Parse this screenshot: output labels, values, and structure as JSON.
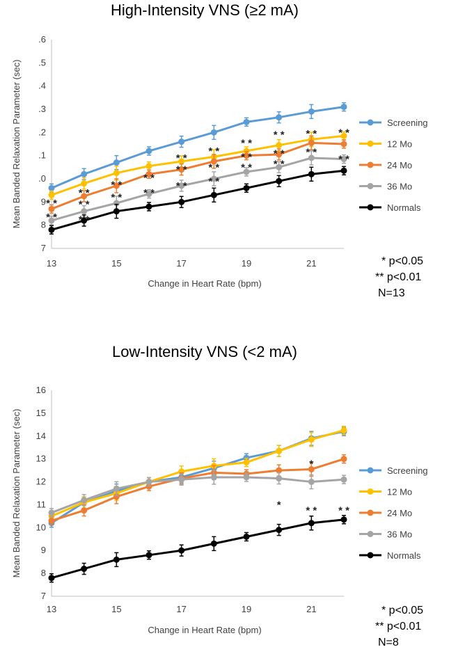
{
  "chart_data": [
    {
      "type": "line",
      "title": "High-Intensity VNS (≥2 mA)",
      "xlabel": "Change in Heart Rate (bpm)",
      "ylabel": "Mean Banded Relaxation Parameter (sec)",
      "xlim": [
        13,
        22
      ],
      "ylim": [
        7,
        16
      ],
      "x_ticks": [
        "13",
        "15",
        "17",
        "19",
        "21"
      ],
      "y_ticks": [
        ".6",
        ".5",
        ".4",
        ".3",
        ".2",
        ".1",
        ".0",
        "9",
        "8",
        "7"
      ],
      "x": [
        13,
        14,
        15,
        16,
        17,
        18,
        19,
        20,
        21,
        22
      ],
      "series": [
        {
          "name": "Screening",
          "color": "#5b9bd5",
          "values": [
            9.6,
            10.2,
            10.7,
            11.2,
            11.6,
            12.0,
            12.45,
            12.65,
            12.9,
            13.1
          ]
        },
        {
          "name": "12 Mo",
          "color": "#ffc000",
          "values": [
            9.3,
            9.8,
            10.25,
            10.55,
            10.75,
            10.95,
            11.2,
            11.45,
            11.7,
            11.85
          ]
        },
        {
          "name": "24 Mo",
          "color": "#ed7d31",
          "values": [
            8.7,
            9.25,
            9.7,
            10.2,
            10.4,
            10.75,
            11.0,
            11.05,
            11.55,
            11.5
          ]
        },
        {
          "name": "36 Mo",
          "color": "#a5a5a5",
          "values": [
            8.2,
            8.6,
            8.95,
            9.35,
            9.7,
            10.0,
            10.3,
            10.5,
            10.9,
            10.85
          ]
        },
        {
          "name": "Normals",
          "color": "#000000",
          "values": [
            7.8,
            8.2,
            8.6,
            8.8,
            9.0,
            9.3,
            9.6,
            9.9,
            10.2,
            10.35
          ]
        }
      ],
      "significance_marks": [
        {
          "x": 13,
          "y": 9.1,
          "label": "* *"
        },
        {
          "x": 13,
          "y": 8.5,
          "label": "* *"
        },
        {
          "x": 14,
          "y": 9.55,
          "label": "* *"
        },
        {
          "x": 14,
          "y": 9.05,
          "label": "* *"
        },
        {
          "x": 14,
          "y": 8.4,
          "label": "* *"
        },
        {
          "x": 15,
          "y": 9.9,
          "label": "* *"
        },
        {
          "x": 15,
          "y": 9.35,
          "label": "* *"
        },
        {
          "x": 16,
          "y": 10.2,
          "label": "* *"
        },
        {
          "x": 16,
          "y": 9.55,
          "label": "* *"
        },
        {
          "x": 17,
          "y": 11.05,
          "label": "* *"
        },
        {
          "x": 17,
          "y": 10.55,
          "label": "* *"
        },
        {
          "x": 17,
          "y": 9.85,
          "label": "* *"
        },
        {
          "x": 18,
          "y": 11.35,
          "label": "* *"
        },
        {
          "x": 18,
          "y": 10.65,
          "label": "* *"
        },
        {
          "x": 18,
          "y": 10.05,
          "label": "* *"
        },
        {
          "x": 19,
          "y": 11.7,
          "label": "* *"
        },
        {
          "x": 19,
          "y": 11.1,
          "label": "* *"
        },
        {
          "x": 19,
          "y": 10.65,
          "label": "* *"
        },
        {
          "x": 20,
          "y": 12.05,
          "label": "* *"
        },
        {
          "x": 20,
          "y": 11.25,
          "label": "* *"
        },
        {
          "x": 20,
          "y": 10.8,
          "label": "* *"
        },
        {
          "x": 21,
          "y": 12.1,
          "label": "* *"
        },
        {
          "x": 21,
          "y": 11.3,
          "label": "* *"
        },
        {
          "x": 22,
          "y": 12.15,
          "label": "* *"
        },
        {
          "x": 22,
          "y": 11.0,
          "label": "* *"
        }
      ],
      "legend": "right",
      "notes": [
        "* p<0.05",
        "** p<0.01",
        "N=13"
      ]
    },
    {
      "type": "line",
      "title": "Low-Intensity VNS (<2 mA)",
      "xlabel": "Change in Heart Rate (bpm)",
      "ylabel": "Mean Banded Relaxation Parameter (sec)",
      "xlim": [
        13,
        22
      ],
      "ylim": [
        7,
        16
      ],
      "x_ticks": [
        "13",
        "15",
        "17",
        "19",
        "21"
      ],
      "y_ticks": [
        "16",
        "15",
        "14",
        "13",
        "12",
        "11",
        "10",
        "9",
        "8",
        "7"
      ],
      "x": [
        13,
        14,
        15,
        16,
        17,
        18,
        19,
        20,
        21,
        22
      ],
      "series": [
        {
          "name": "Screening",
          "color": "#5b9bd5",
          "values": [
            10.2,
            11.1,
            11.6,
            12.0,
            12.2,
            12.6,
            13.05,
            13.35,
            13.9,
            14.2
          ]
        },
        {
          "name": "12 Mo",
          "color": "#ffc000",
          "values": [
            10.5,
            11.1,
            11.5,
            12.0,
            12.45,
            12.7,
            12.85,
            13.35,
            13.85,
            14.25
          ]
        },
        {
          "name": "24 Mo",
          "color": "#ed7d31",
          "values": [
            10.3,
            10.75,
            11.35,
            11.8,
            12.15,
            12.4,
            12.35,
            12.5,
            12.55,
            13.0
          ]
        },
        {
          "name": "36 Mo",
          "color": "#a5a5a5",
          "values": [
            10.65,
            11.2,
            11.7,
            12.0,
            12.1,
            12.2,
            12.2,
            12.15,
            12.0,
            12.1
          ]
        },
        {
          "name": "Normals",
          "color": "#000000",
          "values": [
            7.8,
            8.2,
            8.6,
            8.8,
            9.0,
            9.3,
            9.6,
            9.9,
            10.2,
            10.35
          ]
        }
      ],
      "significance_marks": [
        {
          "x": 20,
          "y": 11.15,
          "label": "*"
        },
        {
          "x": 21,
          "y": 12.95,
          "label": "*"
        },
        {
          "x": 21,
          "y": 10.9,
          "label": "* *"
        },
        {
          "x": 22,
          "y": 10.9,
          "label": "* *"
        }
      ],
      "legend": "right",
      "notes": [
        "* p<0.05",
        "** p<0.01",
        "N=8"
      ]
    }
  ]
}
